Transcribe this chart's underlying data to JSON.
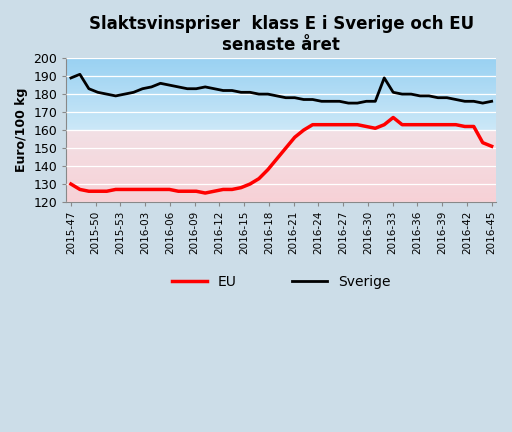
{
  "title": "Slaktsvinspriser  klass E i Sverige och EU\nsenaste året",
  "ylabel": "Euro/100 kg",
  "background_outer": "#ccdde8",
  "xlabels": [
    "2015-47",
    "2015-50",
    "2015-53",
    "2016-03",
    "2016-06",
    "2016-09",
    "2016-12",
    "2016-15",
    "2016-18",
    "2016-21",
    "2016-24",
    "2016-27",
    "2016-30",
    "2016-33",
    "2016-36",
    "2016-39",
    "2016-42",
    "2016-45"
  ],
  "ylim": [
    120,
    200
  ],
  "yticks": [
    120,
    130,
    140,
    150,
    160,
    170,
    180,
    190,
    200
  ],
  "sverige": [
    189,
    191,
    183,
    181,
    180,
    179,
    180,
    181,
    183,
    184,
    186,
    185,
    184,
    183,
    183,
    184,
    183,
    182,
    182,
    181,
    181,
    180,
    180,
    179,
    178,
    178,
    177,
    177,
    176,
    176,
    176,
    175,
    175,
    176,
    176,
    189,
    181,
    180,
    180,
    179,
    179,
    178,
    178,
    177,
    176,
    176,
    175,
    176
  ],
  "eu": [
    130,
    127,
    126,
    126,
    126,
    127,
    127,
    127,
    127,
    127,
    127,
    127,
    126,
    126,
    126,
    125,
    126,
    127,
    127,
    128,
    130,
    133,
    138,
    144,
    150,
    156,
    160,
    163,
    163,
    163,
    163,
    163,
    163,
    162,
    161,
    163,
    167,
    163,
    163,
    163,
    163,
    163,
    163,
    163,
    162,
    162,
    153,
    151
  ],
  "line_color_sverige": "#000000",
  "line_color_eu": "#ff0000",
  "legend_eu": "EU",
  "legend_sverige": "Sverige",
  "n_points": 48
}
